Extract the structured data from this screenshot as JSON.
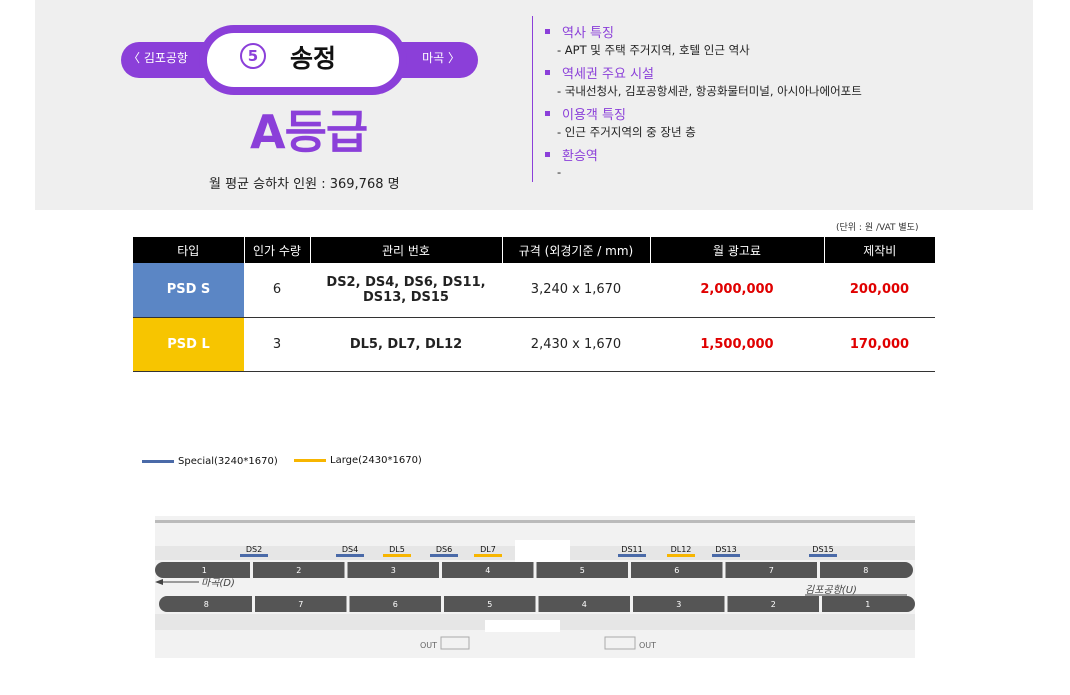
{
  "station": {
    "prev": "〈 김포공항",
    "number": "5",
    "name": "송정",
    "next": "마곡 〉",
    "grade": "A등급",
    "ridership_label": "월 평균 승하차 인원 :",
    "ridership_value": "369,768 명"
  },
  "features": [
    {
      "title": "역사 특징",
      "desc": "-   APT 및 주택 주거지역, 호텔 인근 역사"
    },
    {
      "title": "역세권 주요 시설",
      "desc": "-   국내선청사, 김포공항세관, 항공화물터미널, 아시아나에어포트"
    },
    {
      "title": "이용객 특징",
      "desc": "-   인근 주거지역의 중 장년 층"
    },
    {
      "title": "환승역",
      "desc": "-"
    }
  ],
  "table": {
    "unit_note": "(단위 : 원 /VAT 별도)",
    "headers": [
      "타입",
      "인가 수량",
      "관리 번호",
      "규격 (외경기준 / mm)",
      "월 광고료",
      "제작비"
    ],
    "rows": [
      {
        "type": "PSD S",
        "qty": "6",
        "codes_line1": "DS2, DS4, DS6, DS11,",
        "codes_line2": "DS13, DS15",
        "size": "3,240 x 1,670",
        "fee": "2,000,000",
        "cost": "200,000"
      },
      {
        "type": "PSD L",
        "qty": "3",
        "codes_line1": "DL5, DL7, DL12",
        "codes_line2": "",
        "size": "2,430 x 1,670",
        "fee": "1,500,000",
        "cost": "170,000"
      }
    ]
  },
  "legend": {
    "special": "Special(3240*1670)",
    "large": "Large(2430*1670)",
    "special_color": "#4a6aa8",
    "large_color": "#f7b500"
  },
  "diagram": {
    "top_cars": [
      "1",
      "2",
      "3",
      "4",
      "5",
      "6",
      "7",
      "8"
    ],
    "bottom_cars": [
      "8",
      "7",
      "6",
      "5",
      "4",
      "3",
      "2",
      "1"
    ],
    "dir_left": "마곡(D)",
    "dir_right": "김포공항(U)",
    "exit_label": "OUT",
    "markers": [
      {
        "label": "DS2",
        "kind": "special"
      },
      {
        "label": "DS4",
        "kind": "special"
      },
      {
        "label": "DL5",
        "kind": "large"
      },
      {
        "label": "DS6",
        "kind": "special"
      },
      {
        "label": "DL7",
        "kind": "large"
      },
      {
        "label": "DS11",
        "kind": "special"
      },
      {
        "label": "DL12",
        "kind": "large"
      },
      {
        "label": "DS13",
        "kind": "special"
      },
      {
        "label": "DS15",
        "kind": "special"
      }
    ]
  }
}
